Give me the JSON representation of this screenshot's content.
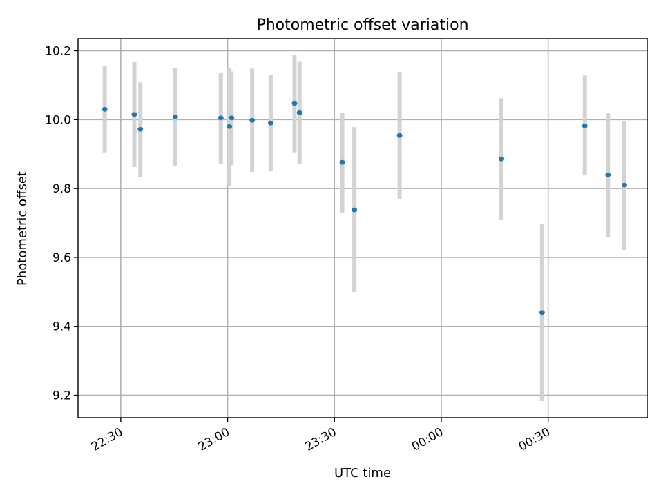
{
  "chart_data": {
    "type": "scatter",
    "title": "Photometric offset variation",
    "xlabel": "UTC time",
    "ylabel": "Photometric offset",
    "x_unit": "minutes after 22:00 UTC",
    "xlim": [
      18,
      178
    ],
    "ylim": [
      9.135,
      10.235
    ],
    "x_ticks": [
      {
        "value": 30,
        "label": "22:30"
      },
      {
        "value": 60,
        "label": "23:00"
      },
      {
        "value": 90,
        "label": "23:30"
      },
      {
        "value": 120,
        "label": "00:00"
      },
      {
        "value": 150,
        "label": "00:30"
      }
    ],
    "y_ticks": [
      {
        "value": 9.2,
        "label": "9.2"
      },
      {
        "value": 9.4,
        "label": "9.4"
      },
      {
        "value": 9.6,
        "label": "9.6"
      },
      {
        "value": 9.8,
        "label": "9.8"
      },
      {
        "value": 10.0,
        "label": "10.0"
      },
      {
        "value": 10.2,
        "label": "10.2"
      }
    ],
    "grid": true,
    "marker_color": "#1f77b4",
    "errorbar_color": "#d3d3d3",
    "points": [
      {
        "x": 25.5,
        "y": 10.03,
        "ylow": 9.905,
        "yhigh": 10.155
      },
      {
        "x": 33.8,
        "y": 10.015,
        "ylow": 9.862,
        "yhigh": 10.167
      },
      {
        "x": 35.5,
        "y": 9.972,
        "ylow": 9.833,
        "yhigh": 10.108
      },
      {
        "x": 45.3,
        "y": 10.008,
        "ylow": 9.866,
        "yhigh": 10.15
      },
      {
        "x": 58.1,
        "y": 10.005,
        "ylow": 9.872,
        "yhigh": 10.135
      },
      {
        "x": 60.5,
        "y": 9.98,
        "ylow": 9.808,
        "yhigh": 10.15
      },
      {
        "x": 61.1,
        "y": 10.005,
        "ylow": 9.868,
        "yhigh": 10.14
      },
      {
        "x": 66.9,
        "y": 9.998,
        "ylow": 9.848,
        "yhigh": 10.148
      },
      {
        "x": 72.1,
        "y": 9.99,
        "ylow": 9.85,
        "yhigh": 10.13
      },
      {
        "x": 78.8,
        "y": 10.047,
        "ylow": 9.905,
        "yhigh": 10.187
      },
      {
        "x": 80.2,
        "y": 10.02,
        "ylow": 9.87,
        "yhigh": 10.168
      },
      {
        "x": 92.2,
        "y": 9.876,
        "ylow": 9.73,
        "yhigh": 10.02
      },
      {
        "x": 95.6,
        "y": 9.738,
        "ylow": 9.5,
        "yhigh": 9.978
      },
      {
        "x": 108.3,
        "y": 9.954,
        "ylow": 9.77,
        "yhigh": 10.138
      },
      {
        "x": 136.9,
        "y": 9.886,
        "ylow": 9.708,
        "yhigh": 10.062
      },
      {
        "x": 148.3,
        "y": 9.44,
        "ylow": 9.183,
        "yhigh": 9.698
      },
      {
        "x": 160.3,
        "y": 9.982,
        "ylow": 9.838,
        "yhigh": 10.128
      },
      {
        "x": 166.8,
        "y": 9.84,
        "ylow": 9.66,
        "yhigh": 10.018
      },
      {
        "x": 171.4,
        "y": 9.81,
        "ylow": 9.622,
        "yhigh": 9.995
      }
    ]
  }
}
